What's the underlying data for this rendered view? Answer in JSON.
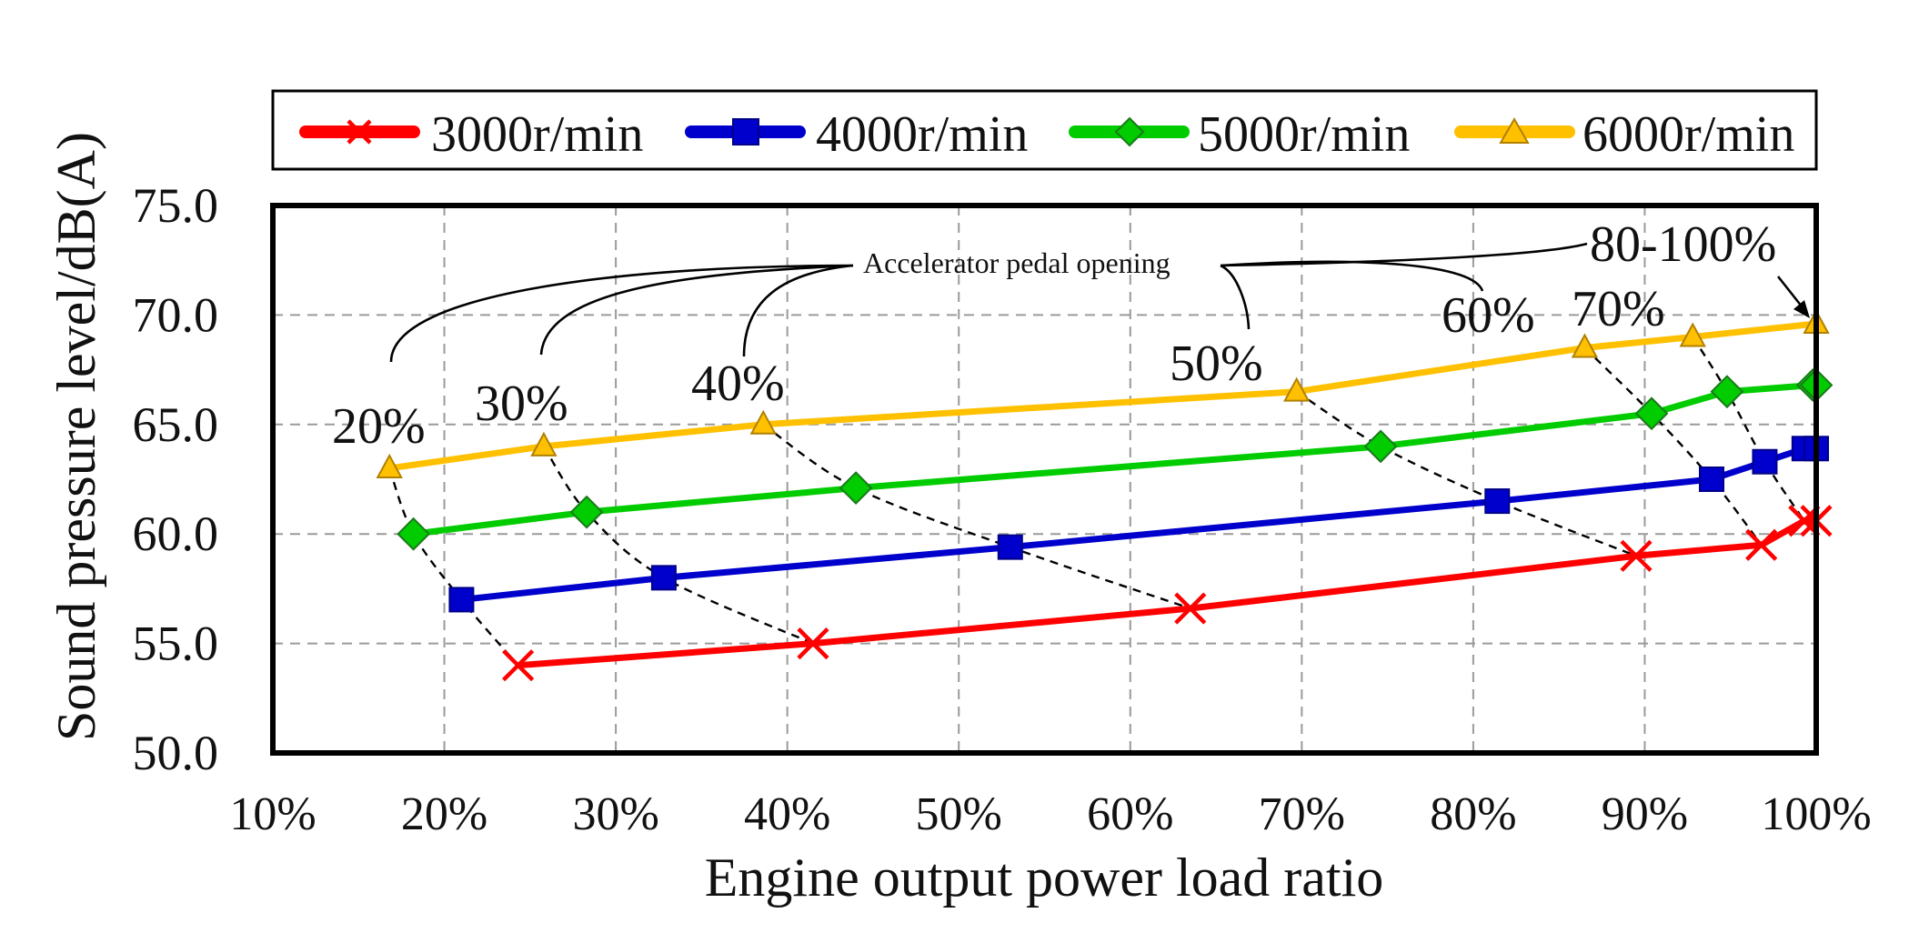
{
  "chart_data": {
    "type": "line",
    "xlabel": "Engine output power load ratio",
    "ylabel": "Sound pressure level/dB(A)",
    "xlim": [
      10,
      100
    ],
    "ylim": [
      50,
      75
    ],
    "x_ticks": [
      "10%",
      "20%",
      "30%",
      "40%",
      "50%",
      "60%",
      "70%",
      "80%",
      "90%",
      "100%"
    ],
    "y_ticks": [
      "50.0",
      "55.0",
      "60.0",
      "65.0",
      "70.0",
      "75.0"
    ],
    "legend_position": "top",
    "series": [
      {
        "name": "3000r/min",
        "color": "#ff0000",
        "marker": "x",
        "x": [
          24.3,
          41.5,
          63.5,
          89.5,
          96.8,
          99.3,
          100
        ],
        "y": [
          54.0,
          55.0,
          56.6,
          59.0,
          59.5,
          60.6,
          60.6
        ]
      },
      {
        "name": "4000r/min",
        "color": "#0000cc",
        "marker": "square",
        "x": [
          21.0,
          32.8,
          53.0,
          81.4,
          93.9,
          97.0,
          99.3,
          100
        ],
        "y": [
          57.0,
          58.0,
          59.4,
          61.5,
          62.5,
          63.3,
          63.9,
          63.9
        ]
      },
      {
        "name": "5000r/min",
        "color": "#00cc00",
        "marker": "diamond",
        "x": [
          18.2,
          28.3,
          44.0,
          74.6,
          90.4,
          94.8,
          99.8,
          100
        ],
        "y": [
          60.0,
          61.0,
          62.1,
          64.0,
          65.5,
          66.5,
          66.8,
          66.8
        ]
      },
      {
        "name": "6000r/min",
        "color": "#ffc000",
        "marker": "triangle",
        "x": [
          16.8,
          25.8,
          38.6,
          69.7,
          86.5,
          92.8,
          100
        ],
        "y": [
          63.0,
          64.0,
          65.0,
          66.5,
          68.5,
          69.0,
          69.6
        ]
      }
    ],
    "pedal_curves": [
      {
        "label": "20%",
        "x": [
          16.8,
          18.2,
          21.0,
          24.3
        ],
        "y": [
          63.0,
          60.0,
          57.0,
          54.0
        ]
      },
      {
        "label": "30%",
        "x": [
          25.8,
          28.3,
          32.8,
          41.5
        ],
        "y": [
          64.0,
          61.0,
          58.0,
          55.0
        ]
      },
      {
        "label": "40%",
        "x": [
          38.6,
          44.0,
          53.0,
          63.5
        ],
        "y": [
          65.0,
          62.1,
          59.4,
          56.6
        ]
      },
      {
        "label": "50%",
        "x": [
          69.7,
          74.6,
          81.4,
          89.5
        ],
        "y": [
          66.5,
          64.0,
          61.5,
          59.0
        ]
      },
      {
        "label": "60%",
        "x": [
          86.5,
          90.4,
          93.9,
          96.8
        ],
        "y": [
          68.5,
          65.5,
          62.5,
          59.5
        ]
      },
      {
        "label": "70%",
        "x": [
          92.8,
          94.8,
          97.0,
          99.3
        ],
        "y": [
          69.0,
          66.5,
          63.3,
          60.6
        ]
      },
      {
        "label": "80-100%",
        "x": [
          100,
          100,
          100,
          100
        ],
        "y": [
          69.6,
          66.8,
          63.9,
          60.6
        ]
      }
    ],
    "annotations": {
      "title": "Accelerator pedal opening",
      "label_20": "20%",
      "label_30": "30%",
      "label_40": "40%",
      "label_50": "50%",
      "label_60": "60%",
      "label_70": "70%",
      "label_80_100": "80-100%"
    }
  }
}
